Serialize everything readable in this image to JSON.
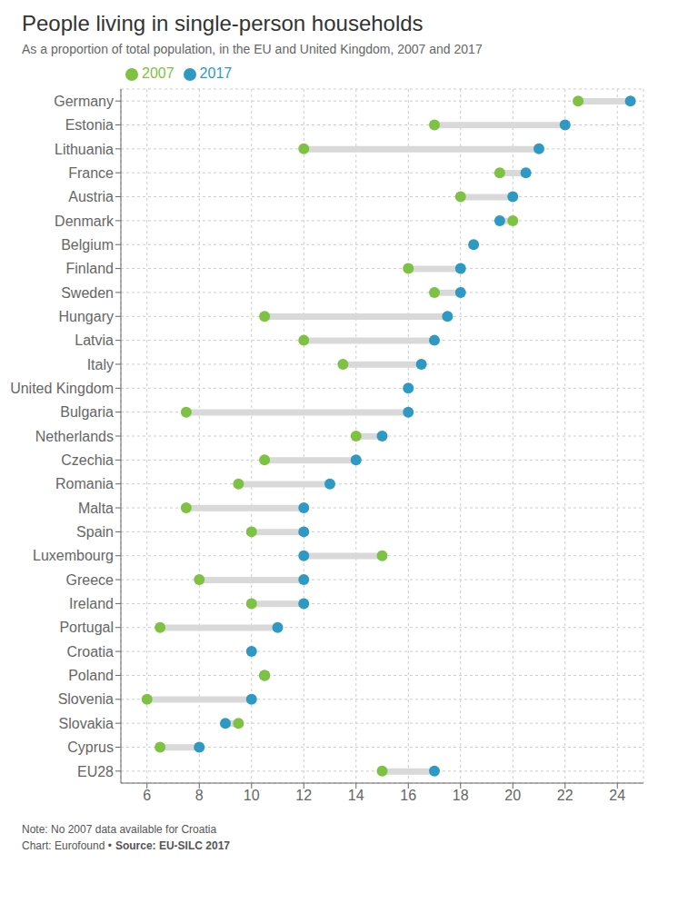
{
  "chart_data": {
    "type": "dumbbell",
    "title": "People living in single-person households",
    "subtitle": "As a proportion of total population, in the EU and United Kingdom, 2007 and 2017",
    "annotations": [
      "Note: No 2007 data available for Croatia",
      "Chart: Eurofound •",
      "Source: EU-SILC 2017"
    ],
    "orientation": "horizontal",
    "categories": [
      "Germany",
      "Estonia",
      "Lithuania",
      "France",
      "Austria",
      "Denmark",
      "Belgium",
      "Finland",
      "Sweden",
      "Hungary",
      "Latvia",
      "Italy",
      "United Kingdom",
      "Bulgaria",
      "Netherlands",
      "Czechia",
      "Romania",
      "Malta",
      "Spain",
      "Luxembourg",
      "Greece",
      "Ireland",
      "Portugal",
      "Croatia",
      "Poland",
      "Slovenia",
      "Slovakia",
      "Cyprus",
      "EU28"
    ],
    "series": [
      {
        "name": "2007",
        "color": "#7DC242",
        "values": [
          22.5,
          17.0,
          12.0,
          19.5,
          18.0,
          20.0,
          null,
          16.0,
          17.0,
          10.5,
          12.0,
          13.5,
          null,
          7.5,
          14.0,
          10.5,
          9.5,
          7.5,
          10.0,
          15.0,
          8.0,
          10.0,
          6.5,
          null,
          10.5,
          6.0,
          9.5,
          6.5,
          15.0
        ]
      },
      {
        "name": "2017",
        "color": "#2E9AC4",
        "values": [
          24.5,
          22.0,
          21.0,
          20.5,
          20.0,
          19.5,
          18.5,
          18.0,
          18.0,
          17.5,
          17.0,
          16.5,
          16.0,
          16.0,
          15.0,
          14.0,
          13.0,
          12.0,
          12.0,
          12.0,
          12.0,
          12.0,
          11.0,
          10.0,
          10.5,
          10.0,
          9.0,
          8.0,
          17.0
        ]
      }
    ],
    "color": "#D9D9D9",
    "xlim": [
      5,
      25
    ],
    "xticks": [
      6,
      8,
      10,
      12,
      14,
      16,
      18,
      20,
      22,
      24
    ],
    "grid": true,
    "legend": "top",
    "marker": "circle"
  }
}
